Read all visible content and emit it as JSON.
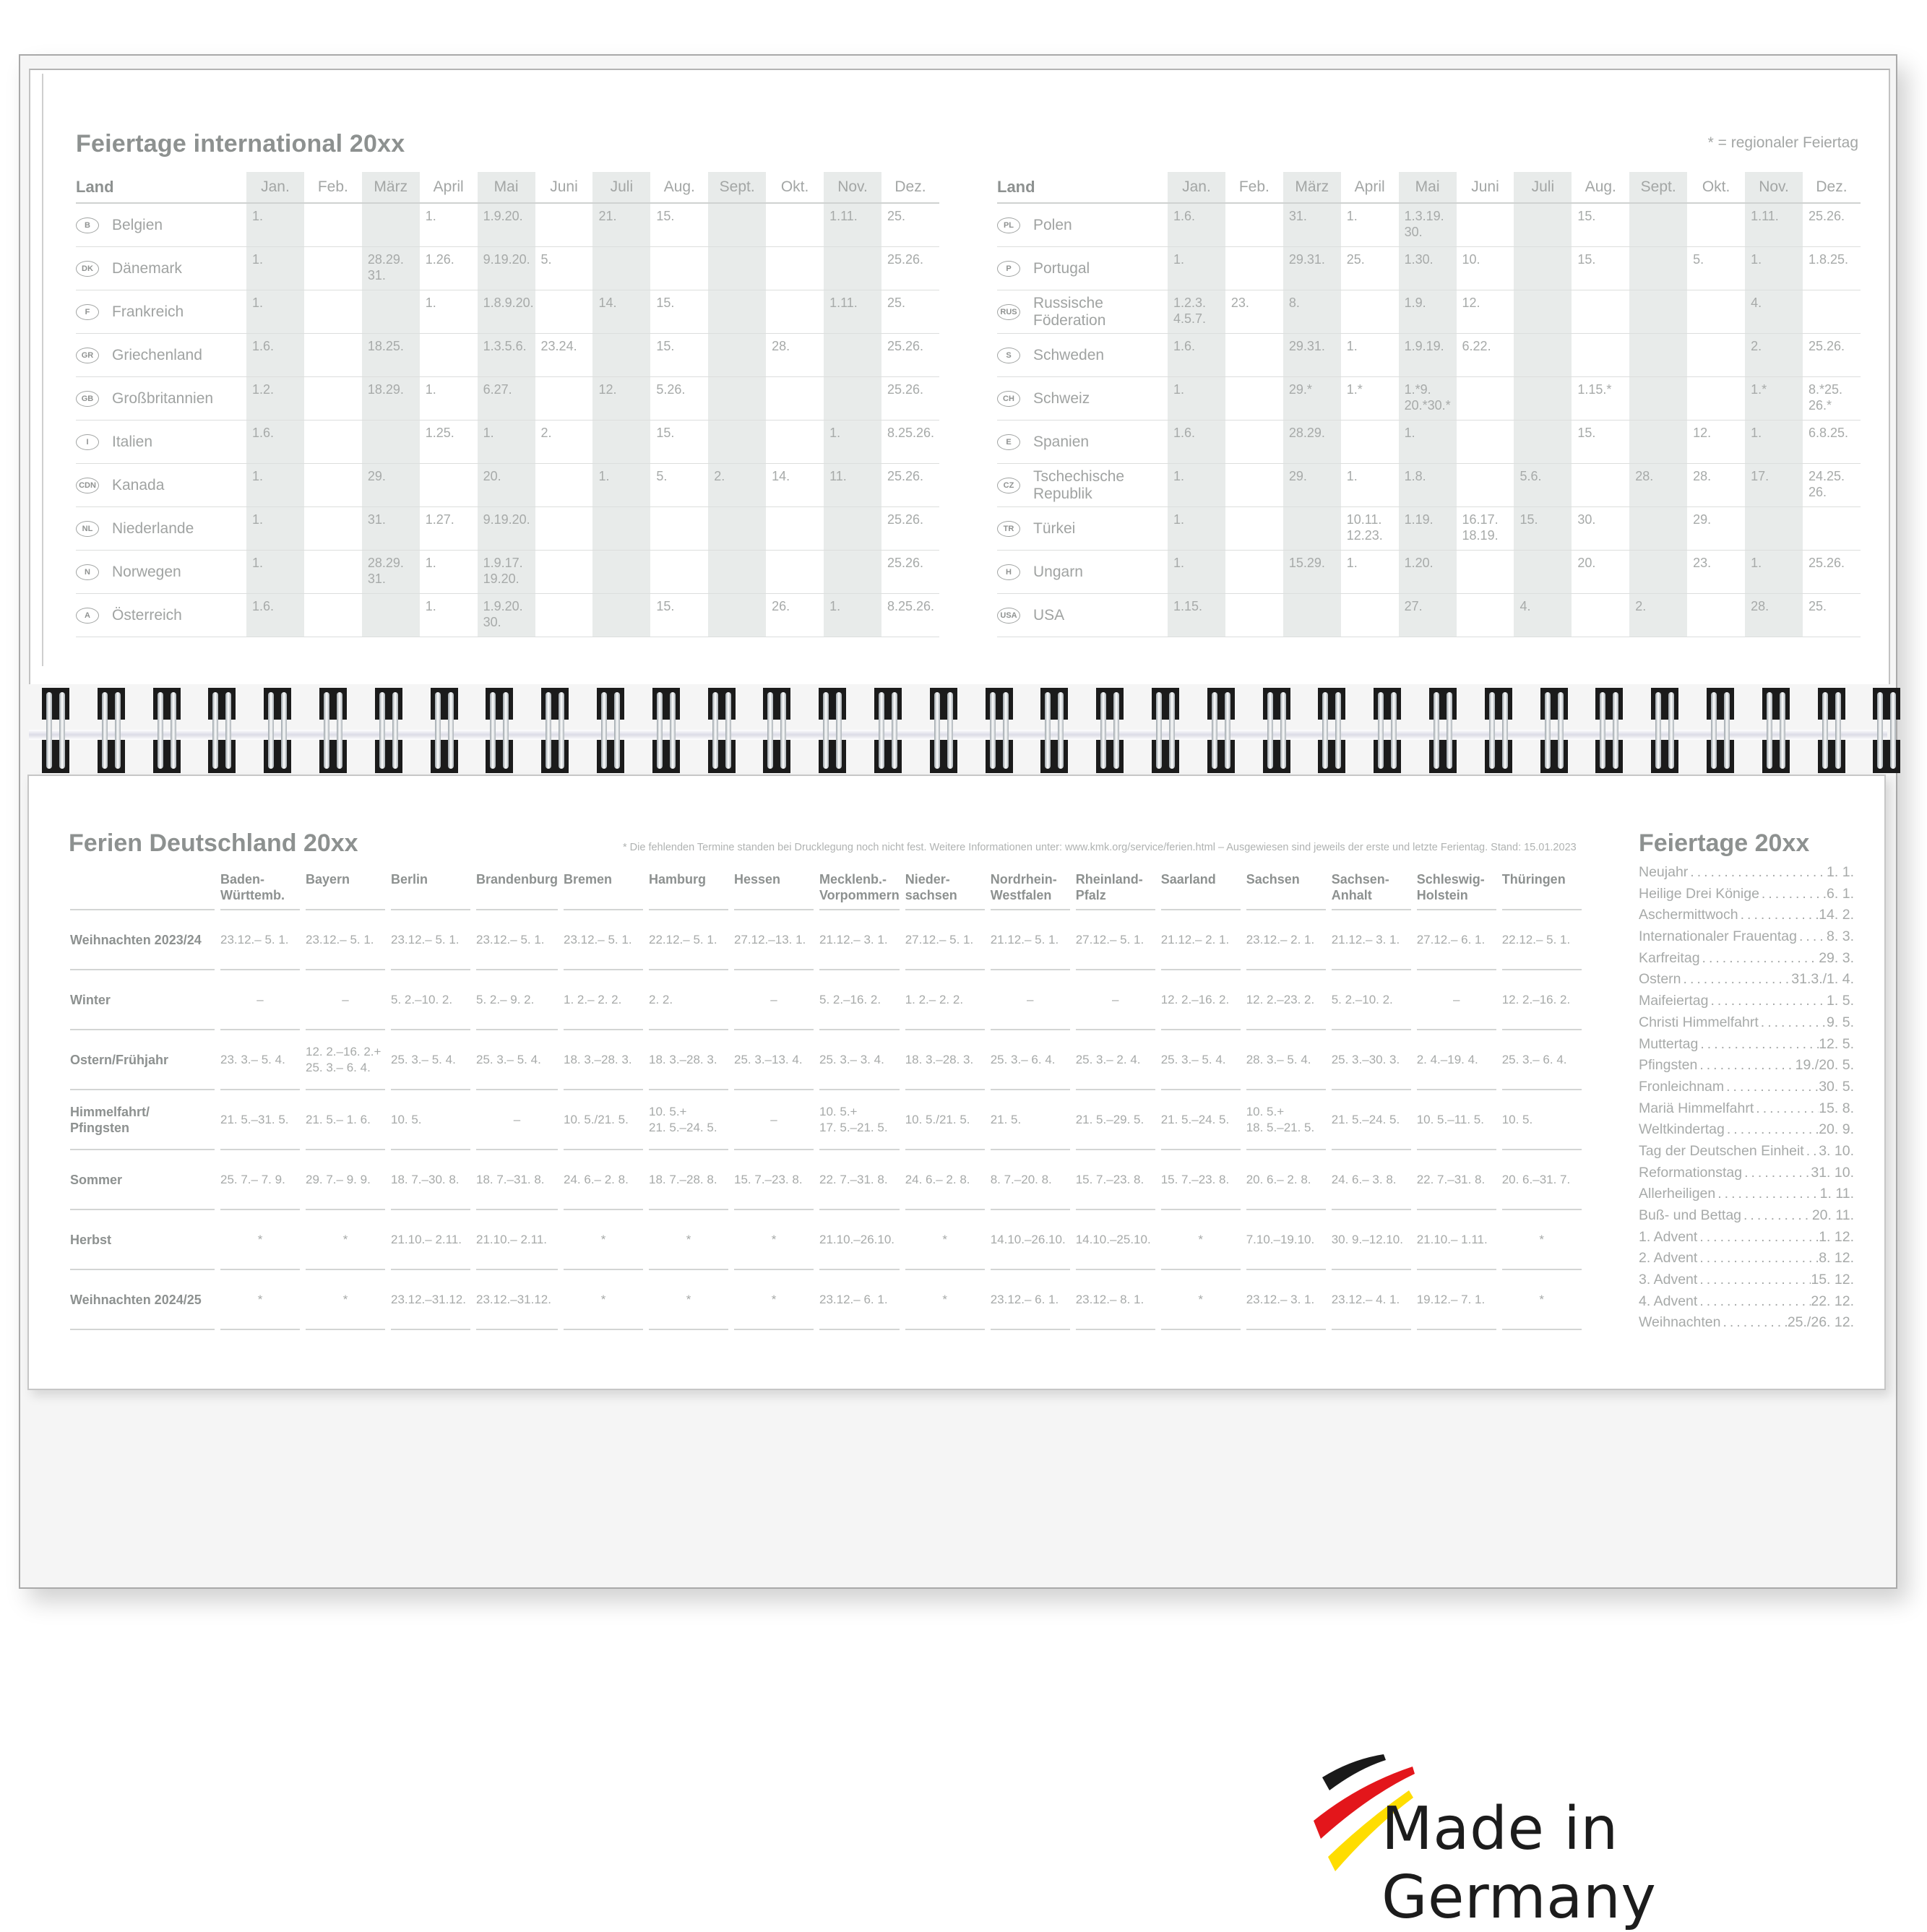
{
  "international": {
    "title": "Feiertage international 20xx",
    "legend_note": "* = regionaler Feiertag",
    "land_header": "Land",
    "months": [
      "Jan.",
      "Feb.",
      "März",
      "April",
      "Mai",
      "Juni",
      "Juli",
      "Aug.",
      "Sept.",
      "Okt.",
      "Nov.",
      "Dez."
    ],
    "left_rows": [
      {
        "code": "B",
        "country": "Belgien",
        "cells": [
          "1.",
          "",
          "",
          "1.",
          "1.9.20.",
          "",
          "21.",
          "15.",
          "",
          "",
          "1.11.",
          "25."
        ]
      },
      {
        "code": "DK",
        "country": "Dänemark",
        "cells": [
          "1.",
          "",
          "28.29. 31.",
          "1.26.",
          "9.19.20.",
          "5.",
          "",
          "",
          "",
          "",
          "",
          "25.26."
        ]
      },
      {
        "code": "F",
        "country": "Frankreich",
        "cells": [
          "1.",
          "",
          "",
          "1.",
          "1.8.9.20.",
          "",
          "14.",
          "15.",
          "",
          "",
          "1.11.",
          "25."
        ]
      },
      {
        "code": "GR",
        "country": "Griechenland",
        "cells": [
          "1.6.",
          "",
          "18.25.",
          "",
          "1.3.5.6.",
          "23.24.",
          "",
          "15.",
          "",
          "28.",
          "",
          "25.26."
        ]
      },
      {
        "code": "GB",
        "country": "Großbritannien",
        "cells": [
          "1.2.",
          "",
          "18.29.",
          "1.",
          "6.27.",
          "",
          "12.",
          "5.26.",
          "",
          "",
          "",
          "25.26."
        ]
      },
      {
        "code": "I",
        "country": "Italien",
        "cells": [
          "1.6.",
          "",
          "",
          "1.25.",
          "1.",
          "2.",
          "",
          "15.",
          "",
          "",
          "1.",
          "8.25.26."
        ]
      },
      {
        "code": "CDN",
        "country": "Kanada",
        "cells": [
          "1.",
          "",
          "29.",
          "",
          "20.",
          "",
          "1.",
          "5.",
          "2.",
          "14.",
          "11.",
          "25.26."
        ]
      },
      {
        "code": "NL",
        "country": "Niederlande",
        "cells": [
          "1.",
          "",
          "31.",
          "1.27.",
          "9.19.20.",
          "",
          "",
          "",
          "",
          "",
          "",
          "25.26."
        ]
      },
      {
        "code": "N",
        "country": "Norwegen",
        "cells": [
          "1.",
          "",
          "28.29. 31.",
          "1.",
          "1.9.17. 19.20.",
          "",
          "",
          "",
          "",
          "",
          "",
          "25.26."
        ]
      },
      {
        "code": "A",
        "country": "Österreich",
        "cells": [
          "1.6.",
          "",
          "",
          "1.",
          "1.9.20. 30.",
          "",
          "",
          "15.",
          "",
          "26.",
          "1.",
          "8.25.26."
        ]
      }
    ],
    "right_rows": [
      {
        "code": "PL",
        "country": "Polen",
        "cells": [
          "1.6.",
          "",
          "31.",
          "1.",
          "1.3.19. 30.",
          "",
          "",
          "15.",
          "",
          "",
          "1.11.",
          "25.26."
        ]
      },
      {
        "code": "P",
        "country": "Portugal",
        "cells": [
          "1.",
          "",
          "29.31.",
          "25.",
          "1.30.",
          "10.",
          "",
          "15.",
          "",
          "5.",
          "1.",
          "1.8.25."
        ]
      },
      {
        "code": "RUS",
        "country": "Russische Föderation",
        "cells": [
          "1.2.3. 4.5.7.",
          "23.",
          "8.",
          "",
          "1.9.",
          "12.",
          "",
          "",
          "",
          "",
          "4.",
          ""
        ]
      },
      {
        "code": "S",
        "country": "Schweden",
        "cells": [
          "1.6.",
          "",
          "29.31.",
          "1.",
          "1.9.19.",
          "6.22.",
          "",
          "",
          "",
          "",
          "2.",
          "25.26."
        ]
      },
      {
        "code": "CH",
        "country": "Schweiz",
        "cells": [
          "1.",
          "",
          "29.*",
          "1.*",
          "1.*9. 20.*30.*",
          "",
          "",
          "1.15.*",
          "",
          "",
          "1.*",
          "8.*25. 26.*"
        ]
      },
      {
        "code": "E",
        "country": "Spanien",
        "cells": [
          "1.6.",
          "",
          "28.29.",
          "",
          "1.",
          "",
          "",
          "15.",
          "",
          "12.",
          "1.",
          "6.8.25."
        ]
      },
      {
        "code": "CZ",
        "country": "Tschechische Republik",
        "cells": [
          "1.",
          "",
          "29.",
          "1.",
          "1.8.",
          "",
          "5.6.",
          "",
          "28.",
          "28.",
          "17.",
          "24.25. 26."
        ]
      },
      {
        "code": "TR",
        "country": "Türkei",
        "cells": [
          "1.",
          "",
          "",
          "10.11. 12.23.",
          "1.19.",
          "16.17. 18.19.",
          "15.",
          "30.",
          "",
          "29.",
          "",
          ""
        ]
      },
      {
        "code": "H",
        "country": "Ungarn",
        "cells": [
          "1.",
          "",
          "15.29.",
          "1.",
          "1.20.",
          "",
          "",
          "20.",
          "",
          "23.",
          "1.",
          "25.26."
        ]
      },
      {
        "code": "USA",
        "country": "USA",
        "cells": [
          "1.15.",
          "",
          "",
          "",
          "27.",
          "",
          "4.",
          "",
          "2.",
          "",
          "28.",
          "25."
        ]
      }
    ]
  },
  "ferien": {
    "title": "Ferien Deutschland 20xx",
    "note": "* Die fehlenden Termine standen bei Drucklegung noch nicht fest. Weitere Informationen unter: www.kmk.org/service/ferien.html – Ausgewiesen sind jeweils der erste und letzte Ferientag. Stand: 15.01.2023",
    "states": [
      "Baden-\nWürttemb.",
      "Bayern",
      "Berlin",
      "Brandenburg",
      "Bremen",
      "Hamburg",
      "Hessen",
      "Mecklenb.-\nVorpommern",
      "Nieder-\nsachsen",
      "Nordrhein-\nWestfalen",
      "Rheinland-\nPfalz",
      "Saarland",
      "Sachsen",
      "Sachsen-\nAnhalt",
      "Schleswig-\nHolstein",
      "Thüringen"
    ],
    "rows": [
      {
        "label": "Weihnachten 2023/24",
        "cells": [
          "23.12.– 5. 1.",
          "23.12.– 5. 1.",
          "23.12.– 5. 1.",
          "23.12.– 5. 1.",
          "23.12.– 5. 1.",
          "22.12.– 5. 1.",
          "27.12.–13. 1.",
          "21.12.– 3. 1.",
          "27.12.– 5. 1.",
          "21.12.– 5. 1.",
          "27.12.– 5. 1.",
          "21.12.– 2. 1.",
          "23.12.– 2. 1.",
          "21.12.– 3. 1.",
          "27.12.– 6. 1.",
          "22.12.– 5. 1."
        ]
      },
      {
        "label": "Winter",
        "cells": [
          "–",
          "–",
          "5. 2.–10. 2.",
          "5. 2.– 9. 2.",
          "1. 2.– 2. 2.",
          "2. 2.",
          "–",
          "5. 2.–16. 2.",
          "1. 2.– 2. 2.",
          "–",
          "–",
          "12. 2.–16. 2.",
          "12. 2.–23. 2.",
          "5. 2.–10. 2.",
          "–",
          "12. 2.–16. 2."
        ]
      },
      {
        "label": "Ostern/Frühjahr",
        "cells": [
          "23. 3.– 5. 4.",
          "12. 2.–16. 2.+\n25. 3.– 6. 4.",
          "25. 3.– 5. 4.",
          "25. 3.– 5. 4.",
          "18. 3.–28. 3.",
          "18. 3.–28. 3.",
          "25. 3.–13. 4.",
          "25. 3.– 3. 4.",
          "18. 3.–28. 3.",
          "25. 3.– 6. 4.",
          "25. 3.– 2. 4.",
          "25. 3.– 5. 4.",
          "28. 3.– 5. 4.",
          "25. 3.–30. 3.",
          "2. 4.–19. 4.",
          "25. 3.– 6. 4."
        ]
      },
      {
        "label": "Himmelfahrt/\nPfingsten",
        "cells": [
          "21. 5.–31. 5.",
          "21. 5.– 1. 6.",
          "10. 5.",
          "–",
          "10. 5./21. 5.",
          "10. 5.+\n21. 5.–24. 5.",
          "–",
          "10. 5.+\n17. 5.–21. 5.",
          "10. 5./21. 5.",
          "21. 5.",
          "21. 5.–29. 5.",
          "21. 5.–24. 5.",
          "10. 5.+\n18. 5.–21. 5.",
          "21. 5.–24. 5.",
          "10. 5.–11. 5.",
          "10. 5."
        ]
      },
      {
        "label": "Sommer",
        "cells": [
          "25. 7.– 7. 9.",
          "29. 7.– 9. 9.",
          "18. 7.–30. 8.",
          "18. 7.–31. 8.",
          "24. 6.– 2. 8.",
          "18. 7.–28. 8.",
          "15. 7.–23. 8.",
          "22. 7.–31. 8.",
          "24. 6.– 2. 8.",
          "8. 7.–20. 8.",
          "15. 7.–23. 8.",
          "15. 7.–23. 8.",
          "20. 6.– 2. 8.",
          "24. 6.– 3. 8.",
          "22. 7.–31. 8.",
          "20. 6.–31. 7."
        ]
      },
      {
        "label": "Herbst",
        "cells": [
          "*",
          "*",
          "21.10.– 2.11.",
          "21.10.– 2.11.",
          "*",
          "*",
          "*",
          "21.10.–26.10.",
          "*",
          "14.10.–26.10.",
          "14.10.–25.10.",
          "*",
          "7.10.–19.10.",
          "30. 9.–12.10.",
          "21.10.– 1.11.",
          "*"
        ]
      },
      {
        "label": "Weihnachten 2024/25",
        "cells": [
          "*",
          "*",
          "23.12.–31.12.",
          "23.12.–31.12.",
          "*",
          "*",
          "*",
          "23.12.– 6. 1.",
          "*",
          "23.12.– 6. 1.",
          "23.12.– 8. 1.",
          "*",
          "23.12.– 3. 1.",
          "23.12.– 4. 1.",
          "19.12.– 7. 1.",
          "*"
        ]
      }
    ]
  },
  "holidays": {
    "title": "Feiertage 20xx",
    "items": [
      {
        "name": "Neujahr",
        "date": "1. 1."
      },
      {
        "name": "Heilige Drei Könige",
        "date": "6. 1."
      },
      {
        "name": "Aschermittwoch",
        "date": "14. 2."
      },
      {
        "name": "Internationaler Frauentag",
        "date": "8. 3."
      },
      {
        "name": "Karfreitag",
        "date": "29. 3."
      },
      {
        "name": "Ostern",
        "date": "31.3./1. 4."
      },
      {
        "name": "Maifeiertag",
        "date": "1. 5."
      },
      {
        "name": "Christi Himmelfahrt",
        "date": "9. 5."
      },
      {
        "name": "Muttertag",
        "date": "12. 5."
      },
      {
        "name": "Pfingsten",
        "date": "19./20. 5."
      },
      {
        "name": "Fronleichnam",
        "date": "30. 5."
      },
      {
        "name": "Mariä Himmelfahrt",
        "date": "15. 8."
      },
      {
        "name": "Weltkindertag",
        "date": "20. 9."
      },
      {
        "name": "Tag der Deutschen Einheit",
        "date": "3. 10."
      },
      {
        "name": "Reformationstag",
        "date": "31. 10."
      },
      {
        "name": "Allerheiligen",
        "date": "1. 11."
      },
      {
        "name": "Buß- und Bettag",
        "date": "20. 11."
      },
      {
        "name": "1. Advent",
        "date": "1. 12."
      },
      {
        "name": "2. Advent",
        "date": "8. 12."
      },
      {
        "name": "3. Advent",
        "date": "15. 12."
      },
      {
        "name": "4. Advent",
        "date": "22. 12."
      },
      {
        "name": "Weihnachten",
        "date": "25./26. 12."
      }
    ]
  },
  "badge": {
    "text": "Made in Germany",
    "icon": "german-flag-brush-icon",
    "colors": {
      "black": "#1a1a1a",
      "red": "#e3161b",
      "gold": "#ffdd00"
    }
  },
  "colors": {
    "text_gray": "#a7aaa9",
    "heading_gray": "#8d9190",
    "column_shade": "#e8ebea",
    "frame_bg": "#f5f5f5"
  },
  "spiral": {
    "coil_count": 34
  }
}
